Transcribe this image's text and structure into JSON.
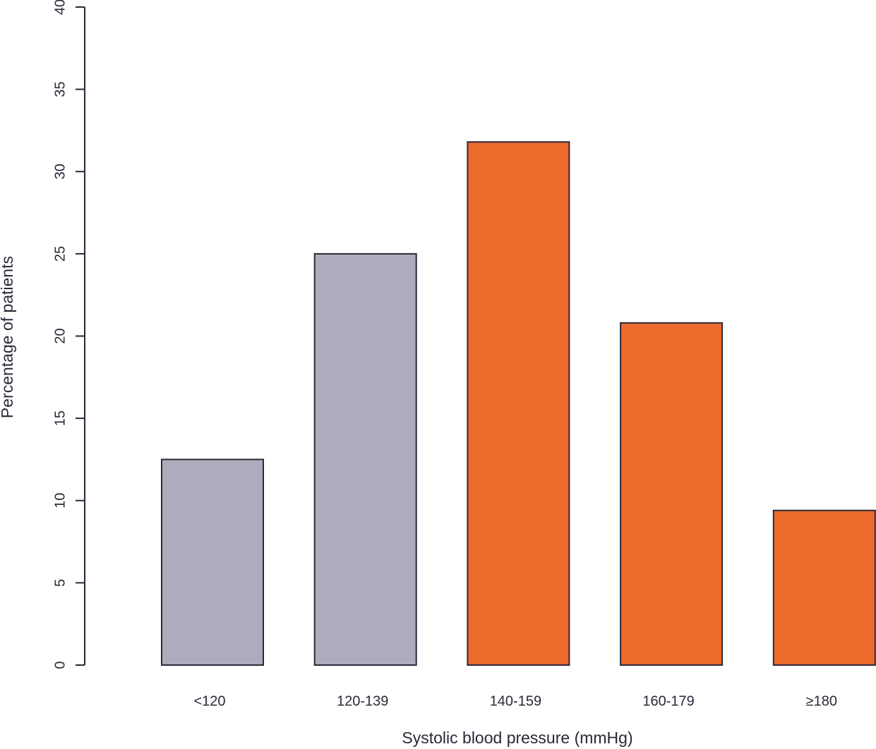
{
  "chart_data": {
    "type": "bar",
    "x_label": "Systolic blood pressure (mmHg)",
    "y_label": "Percentage of patients",
    "categories": [
      "<120",
      "120-139",
      "140-159",
      "160-179",
      "≥180"
    ],
    "values": [
      12.5,
      25,
      31.8,
      20.8,
      9.4
    ],
    "colors": [
      "#aeacbc",
      "#aeacbc",
      "#ec6a2c",
      "#ec6a2c",
      "#ec6a2c"
    ],
    "ylim": [
      0,
      40
    ],
    "yticks": [
      0,
      5,
      10,
      15,
      20,
      25,
      30,
      35,
      40
    ]
  }
}
